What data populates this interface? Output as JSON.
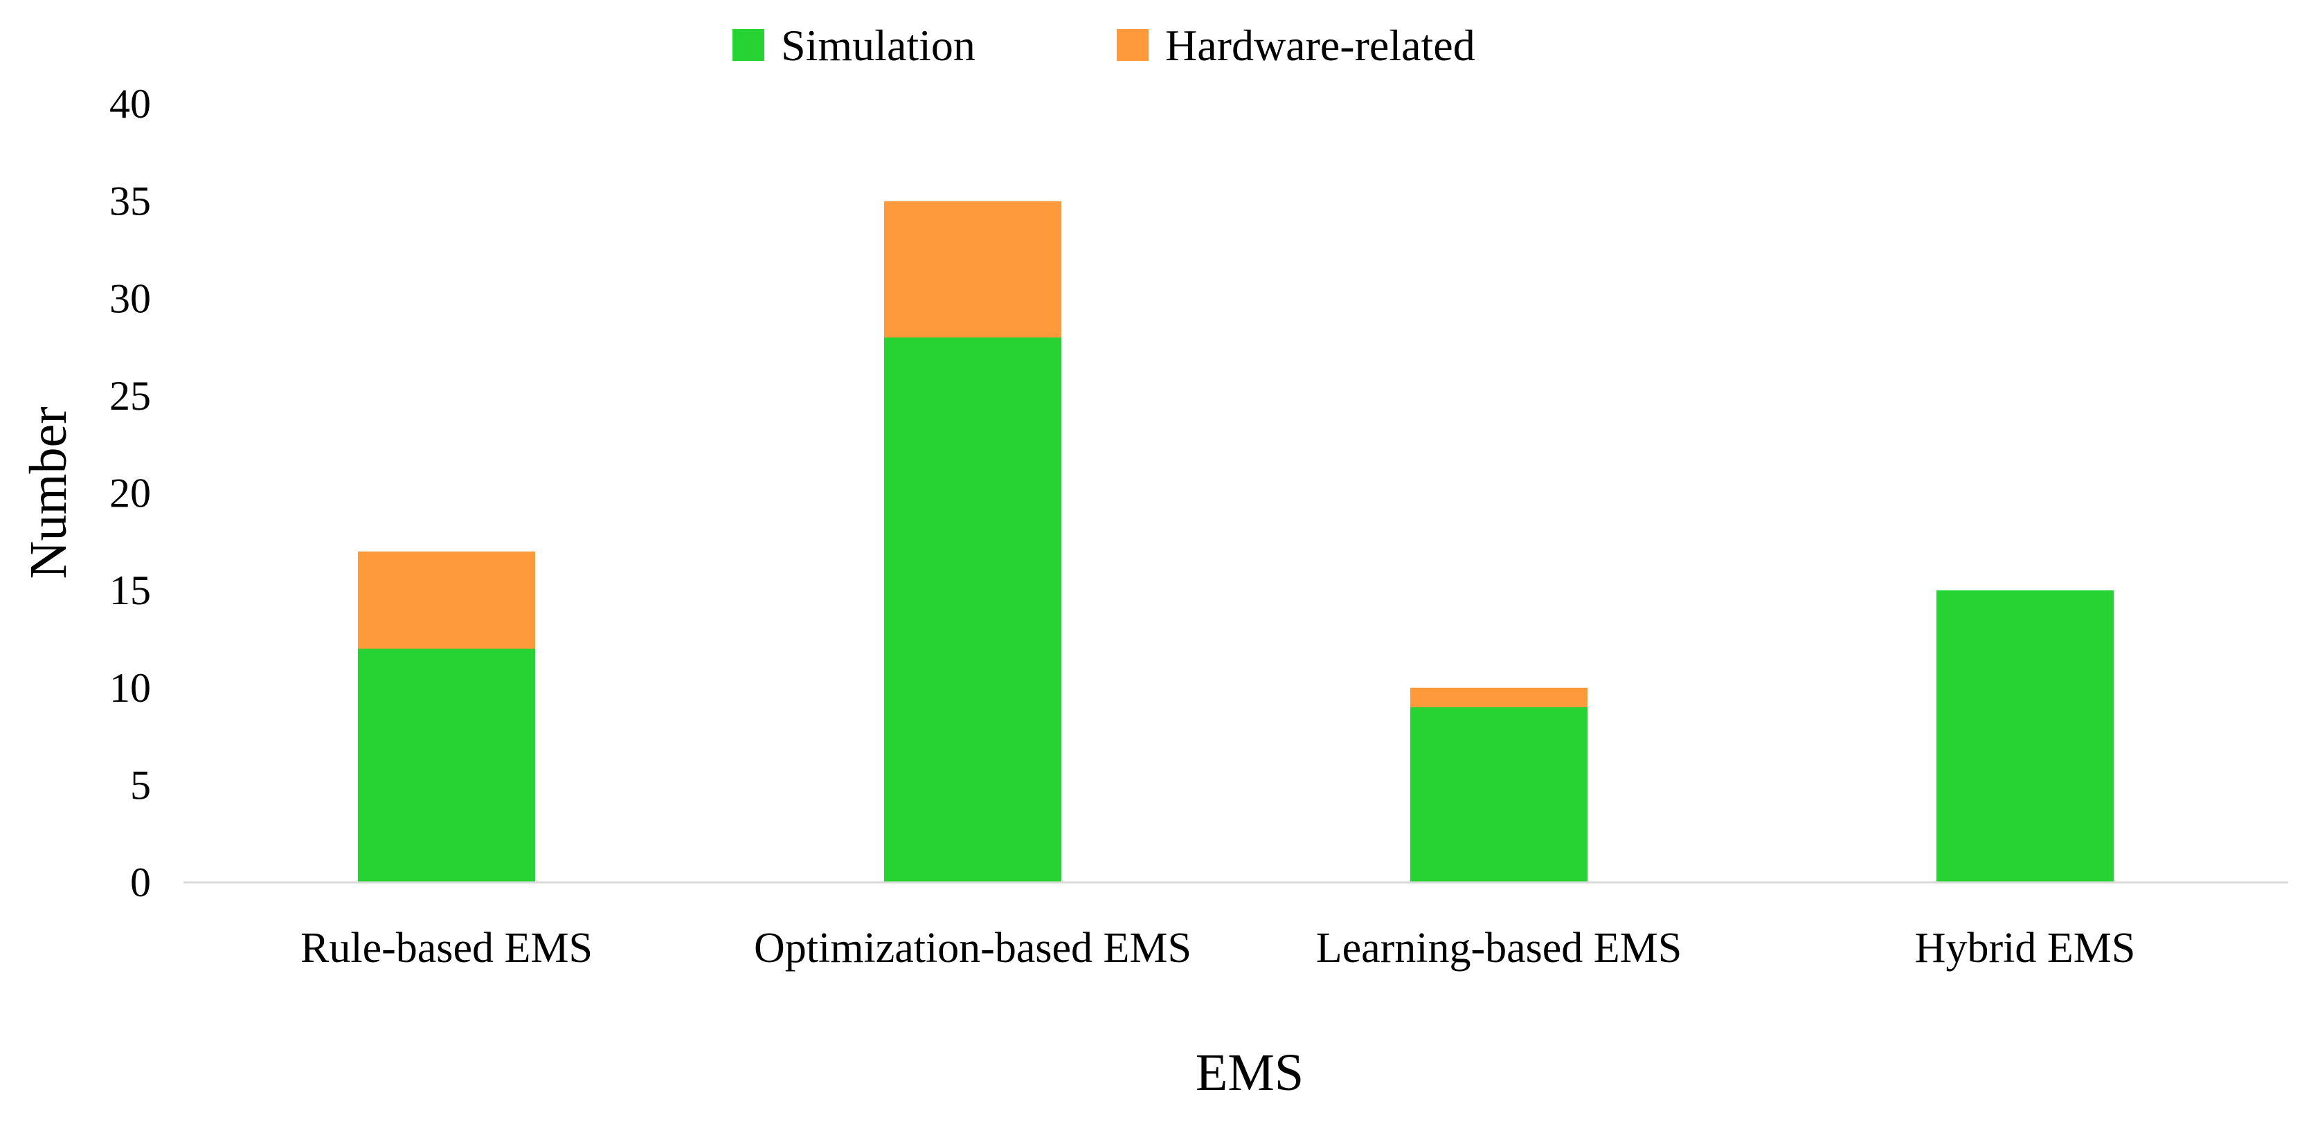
{
  "chart_data": {
    "type": "bar",
    "stacked": true,
    "categories": [
      "Rule-based EMS",
      "Optimization-based EMS",
      "Learning-based EMS",
      "Hybrid EMS"
    ],
    "series": [
      {
        "name": "Simulation",
        "color": "#26d332",
        "values": [
          12,
          28,
          9,
          15
        ]
      },
      {
        "name": "Hardware-related",
        "color": "#ff9a3c",
        "values": [
          5,
          7,
          1,
          0
        ]
      }
    ],
    "title": "",
    "xlabel": "EMS",
    "ylabel": "Number",
    "ylim": [
      0,
      40
    ],
    "yticks": [
      "0",
      "5",
      "10",
      "15",
      "20",
      "25",
      "30",
      "35",
      "40"
    ],
    "grid": false,
    "legend_position": "top-center"
  }
}
